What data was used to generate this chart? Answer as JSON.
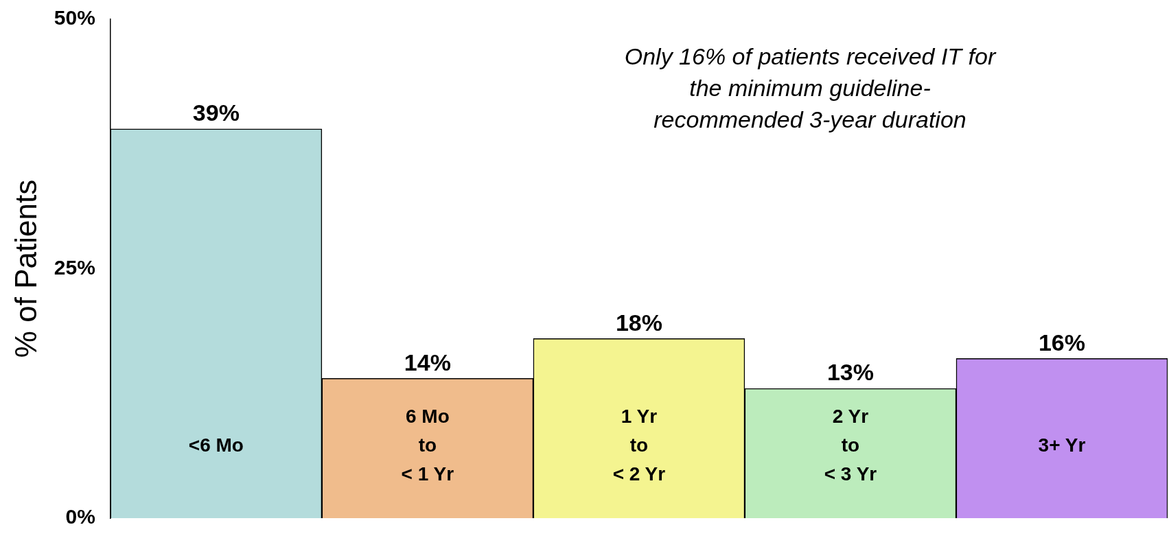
{
  "chart_data": {
    "type": "bar",
    "categories": [
      "<6 Mo",
      "6 Mo\nto\n< 1 Yr",
      "1 Yr\nto\n< 2 Yr",
      "2 Yr\nto\n< 3 Yr",
      "3+ Yr"
    ],
    "values": [
      39,
      14,
      18,
      13,
      16
    ],
    "colors": [
      "#b4dcdc",
      "#f0bc8c",
      "#f4f490",
      "#bcecbc",
      "#c090f0"
    ],
    "value_labels": [
      "39%",
      "14%",
      "18%",
      "13%",
      "16%"
    ],
    "ylabel": "% of Patients",
    "ylim": [
      0,
      50
    ],
    "yticks": [
      {
        "value": 0,
        "label": "0%"
      },
      {
        "value": 25,
        "label": "25%"
      },
      {
        "value": 50,
        "label": "50%"
      }
    ],
    "annotations": [
      "Only 16% of patients received IT for\nthe minimum guideline-\nrecommended 3-year duration"
    ],
    "grid": false,
    "legend": false
  }
}
